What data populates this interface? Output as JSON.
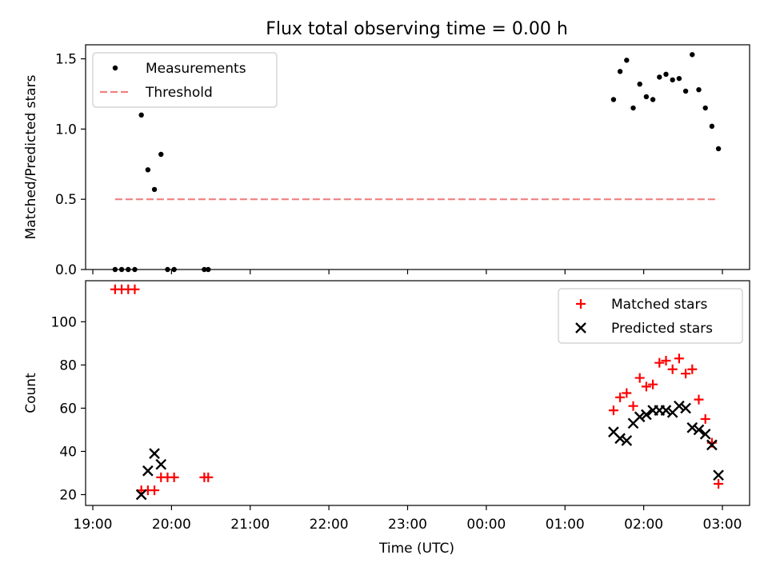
{
  "figure": {
    "title": "Flux total observing time = 0.00 h",
    "xlabel": "Time (UTC)"
  },
  "chart_data": [
    {
      "type": "scatter",
      "ylabel": "Matched/Predicted stars",
      "ylim": [
        0,
        1.6
      ],
      "yticks": [
        "0.0",
        "0.5",
        "1.0",
        "1.5"
      ],
      "xlim": [
        "19:00",
        "03:00"
      ],
      "grid": false,
      "legend_position": "top-left",
      "series": [
        {
          "name": "Measurements",
          "color": "#000000",
          "marker": "dot",
          "points": [
            [
              "19:17",
              0.0
            ],
            [
              "19:22",
              0.0
            ],
            [
              "19:27",
              0.0
            ],
            [
              "19:32",
              0.0
            ],
            [
              "19:37",
              1.1
            ],
            [
              "19:42",
              0.71
            ],
            [
              "19:47",
              0.57
            ],
            [
              "19:52",
              0.82
            ],
            [
              "19:57",
              0.0
            ],
            [
              "20:02",
              0.0
            ],
            [
              "20:25",
              0.0
            ],
            [
              "20:28",
              0.0
            ],
            [
              "01:37",
              1.21
            ],
            [
              "01:42",
              1.41
            ],
            [
              "01:47",
              1.49
            ],
            [
              "01:52",
              1.15
            ],
            [
              "01:57",
              1.32
            ],
            [
              "02:02",
              1.23
            ],
            [
              "02:07",
              1.21
            ],
            [
              "02:12",
              1.37
            ],
            [
              "02:17",
              1.39
            ],
            [
              "02:22",
              1.35
            ],
            [
              "02:27",
              1.36
            ],
            [
              "02:32",
              1.27
            ],
            [
              "02:37",
              1.53
            ],
            [
              "02:42",
              1.28
            ],
            [
              "02:47",
              1.15
            ],
            [
              "02:52",
              1.02
            ],
            [
              "02:57",
              0.86
            ]
          ]
        },
        {
          "name": "Threshold",
          "color": "#f08080",
          "style": "dashed",
          "points": [
            [
              "19:17",
              0.5
            ],
            [
              "02:57",
              0.5
            ]
          ]
        }
      ]
    },
    {
      "type": "scatter",
      "ylabel": "Count",
      "ylim": [
        15,
        119
      ],
      "yticks": [
        "20",
        "40",
        "60",
        "80",
        "100"
      ],
      "xlim": [
        "19:00",
        "03:00"
      ],
      "xticks": [
        "19:00",
        "20:00",
        "21:00",
        "22:00",
        "23:00",
        "00:00",
        "01:00",
        "02:00",
        "03:00"
      ],
      "grid": false,
      "legend_position": "top-right",
      "series": [
        {
          "name": "Matched stars",
          "color": "#ff0000",
          "marker": "plus",
          "points": [
            [
              "19:17",
              115
            ],
            [
              "19:22",
              115
            ],
            [
              "19:27",
              115
            ],
            [
              "19:32",
              115
            ],
            [
              "19:37",
              22
            ],
            [
              "19:42",
              22
            ],
            [
              "19:47",
              22
            ],
            [
              "19:52",
              28
            ],
            [
              "19:57",
              28
            ],
            [
              "20:02",
              28
            ],
            [
              "20:25",
              28
            ],
            [
              "20:28",
              28
            ],
            [
              "01:37",
              59
            ],
            [
              "01:42",
              65
            ],
            [
              "01:47",
              67
            ],
            [
              "01:52",
              61
            ],
            [
              "01:57",
              74
            ],
            [
              "02:02",
              70
            ],
            [
              "02:07",
              71
            ],
            [
              "02:12",
              81
            ],
            [
              "02:17",
              82
            ],
            [
              "02:22",
              78
            ],
            [
              "02:27",
              83
            ],
            [
              "02:32",
              76
            ],
            [
              "02:37",
              78
            ],
            [
              "02:42",
              64
            ],
            [
              "02:47",
              55
            ],
            [
              "02:52",
              44
            ],
            [
              "02:57",
              25
            ]
          ]
        },
        {
          "name": "Predicted stars",
          "color": "#000000",
          "marker": "x",
          "points": [
            [
              "19:37",
              20
            ],
            [
              "19:42",
              31
            ],
            [
              "19:47",
              39
            ],
            [
              "19:52",
              34
            ],
            [
              "01:37",
              49
            ],
            [
              "01:42",
              46
            ],
            [
              "01:47",
              45
            ],
            [
              "01:52",
              53
            ],
            [
              "01:57",
              56
            ],
            [
              "02:02",
              57
            ],
            [
              "02:07",
              59
            ],
            [
              "02:12",
              59
            ],
            [
              "02:17",
              59
            ],
            [
              "02:22",
              58
            ],
            [
              "02:27",
              61
            ],
            [
              "02:32",
              60
            ],
            [
              "02:37",
              51
            ],
            [
              "02:42",
              50
            ],
            [
              "02:47",
              48
            ],
            [
              "02:52",
              43
            ],
            [
              "02:57",
              29
            ]
          ]
        }
      ]
    }
  ]
}
